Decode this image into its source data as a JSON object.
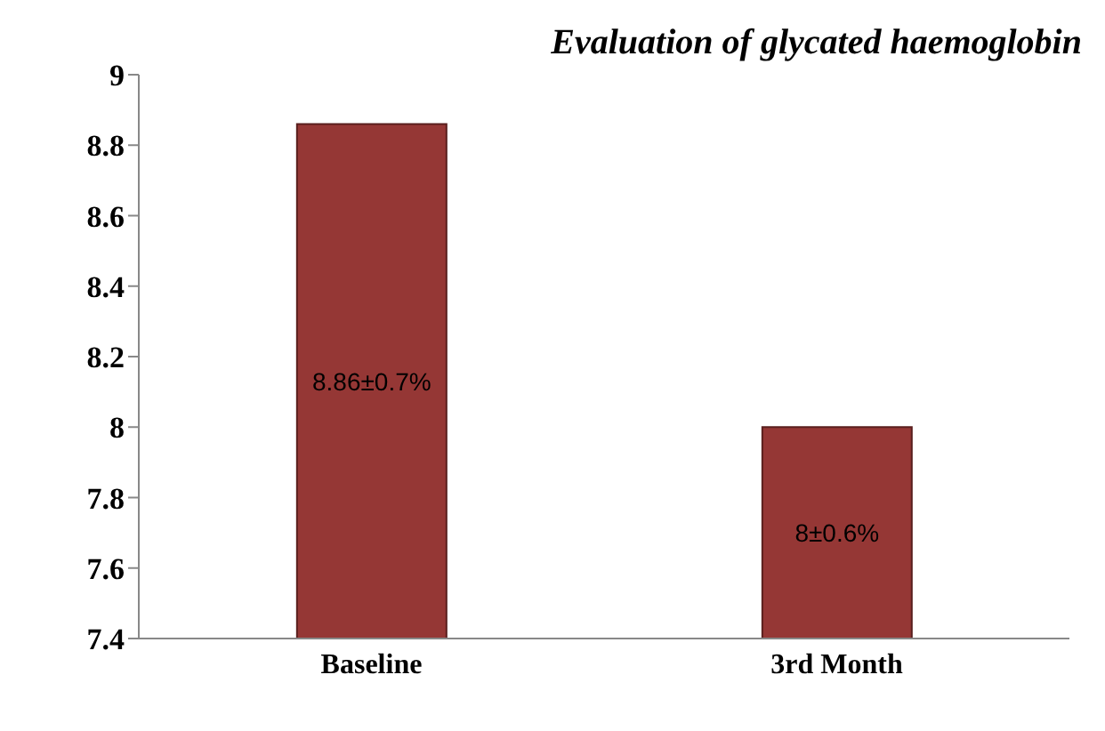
{
  "chart_data": {
    "type": "bar",
    "title": "Evaluation of glycated haemoglobin",
    "categories": [
      "Baseline",
      "3rd Month"
    ],
    "values": [
      8.86,
      8
    ],
    "color": "#953735",
    "value_labels": [
      "8.86±0.7%",
      "8±0.6%"
    ],
    "ylim": [
      7.4,
      9
    ],
    "yticks": [
      7.4,
      7.6,
      7.8,
      8,
      8.2,
      8.4,
      8.6,
      8.8,
      9
    ],
    "grid": false,
    "legend": false
  }
}
